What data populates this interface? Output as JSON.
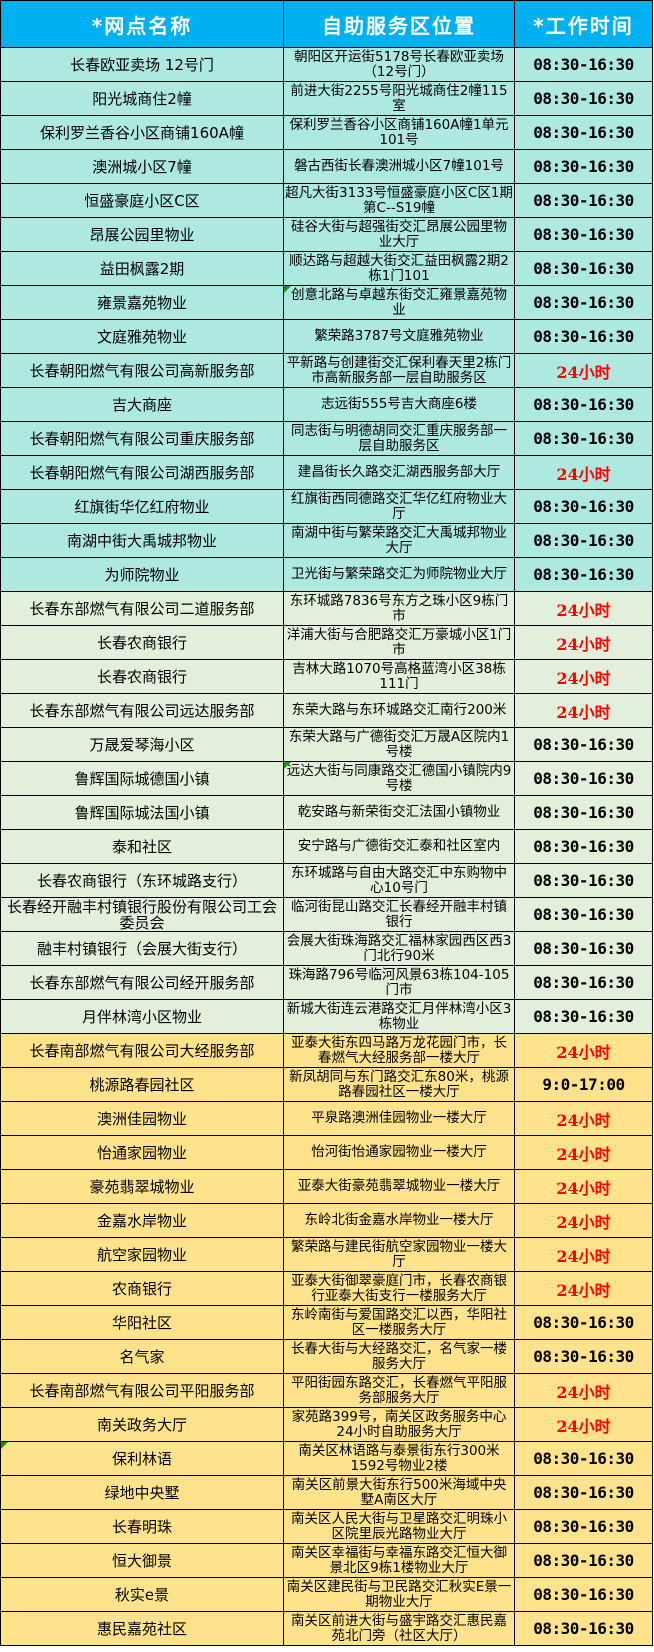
{
  "header": {
    "columns": [
      "*网点名称",
      "自助服务区位置",
      "*工作时间"
    ]
  },
  "colors": {
    "header_bg": "#00B0F0",
    "header_text": "#FFFFFF",
    "band_cyan": "#ADE8E1",
    "band_green": "#E2EFDA",
    "band_yellow": "#FFE38C",
    "hours_normal": "#000000",
    "hours_24h": "#FF0000",
    "border": "#000000",
    "note_marker": "#1E8E1E"
  },
  "rows": [
    {
      "name": "长春欧亚卖场 12号门",
      "location": "朝阳区开运街5178号长春欧亚卖场（12号门）",
      "hours": "08:30-16:30",
      "hours_highlight": false,
      "band": "cyan",
      "note": "none"
    },
    {
      "name": "阳光城商住2幢",
      "location": "前进大街2255号阳光城商住2幢115室",
      "hours": "08:30-16:30",
      "hours_highlight": false,
      "band": "cyan",
      "note": "none"
    },
    {
      "name": "保利罗兰香谷小区商铺160A幢",
      "location": "保利罗兰香谷小区商铺160A幢1单元101号",
      "hours": "08:30-16:30",
      "hours_highlight": false,
      "band": "cyan",
      "note": "none"
    },
    {
      "name": "澳洲城小区7幢",
      "location": "磐古西街长春澳洲城小区7幢101号",
      "hours": "08:30-16:30",
      "hours_highlight": false,
      "band": "cyan",
      "note": "none"
    },
    {
      "name": "恒盛豪庭小区C区",
      "location": "超凡大街3133号恒盛豪庭小区C区1期第C--S19幢",
      "hours": "08:30-16:30",
      "hours_highlight": false,
      "band": "cyan",
      "note": "none"
    },
    {
      "name": "昂展公园里物业",
      "location": "硅谷大街与超强街交汇昂展公园里物业大厅",
      "hours": "08:30-16:30",
      "hours_highlight": false,
      "band": "cyan",
      "note": "none"
    },
    {
      "name": "益田枫露2期",
      "location": "顺达路与超越大街交汇益田枫露2期2栋1门101",
      "hours": "08:30-16:30",
      "hours_highlight": false,
      "band": "cyan",
      "note": "none"
    },
    {
      "name": "雍景嘉苑物业",
      "location": "创意北路与卓越东街交汇雍景嘉苑物业",
      "hours": "08:30-16:30",
      "hours_highlight": false,
      "band": "cyan",
      "note": "location"
    },
    {
      "name": "文庭雅苑物业",
      "location": "繁荣路3787号文庭雅苑物业",
      "hours": "08:30-16:30",
      "hours_highlight": false,
      "band": "cyan",
      "note": "none"
    },
    {
      "name": "长春朝阳燃气有限公司高新服务部",
      "location": "平新路与创建街交汇保利春天里2栋门市高新服务部一层自助服务区",
      "hours": "24小时",
      "hours_highlight": true,
      "band": "cyan",
      "note": "none"
    },
    {
      "name": "吉大商座",
      "location": "志远街555号吉大商座6楼",
      "hours": "08:30-16:30",
      "hours_highlight": false,
      "band": "cyan",
      "note": "none"
    },
    {
      "name": "长春朝阳燃气有限公司重庆服务部",
      "location": "同志街与明德胡同交汇重庆服务部一层自助服务区",
      "hours": "08:30-16:30",
      "hours_highlight": false,
      "band": "cyan",
      "note": "none"
    },
    {
      "name": "长春朝阳燃气有限公司湖西服务部",
      "location": "建昌街长久路交汇湖西服务部大厅",
      "hours": "24小时",
      "hours_highlight": true,
      "band": "cyan",
      "note": "none"
    },
    {
      "name": "红旗街华亿红府物业",
      "location": "红旗街西同德路交汇华亿红府物业大厅",
      "hours": "08:30-16:30",
      "hours_highlight": false,
      "band": "cyan",
      "note": "none"
    },
    {
      "name": "南湖中街大禹城邦物业",
      "location": "南湖中街与繁荣路交汇大禹城邦物业大厅",
      "hours": "08:30-16:30",
      "hours_highlight": false,
      "band": "cyan",
      "note": "none"
    },
    {
      "name": "为师院物业",
      "location": "卫光街与繁荣路交汇为师院物业大厅",
      "hours": "08:30-16:30",
      "hours_highlight": false,
      "band": "cyan",
      "note": "none"
    },
    {
      "name": "长春东部燃气有限公司二道服务部",
      "location": "东环城路7836号东方之珠小区9栋门市",
      "hours": "24小时",
      "hours_highlight": true,
      "band": "green",
      "note": "none"
    },
    {
      "name": "长春农商银行",
      "location": "洋浦大街与合肥路交汇万豪城小区1门市",
      "hours": "24小时",
      "hours_highlight": true,
      "band": "green",
      "note": "none"
    },
    {
      "name": "长春农商银行",
      "location": "吉林大路1070号高格蓝湾小区38栋111门",
      "hours": "24小时",
      "hours_highlight": true,
      "band": "green",
      "note": "none"
    },
    {
      "name": "长春东部燃气有限公司远达服务部",
      "location": "东荣大路与东环城路交汇南行200米",
      "hours": "24小时",
      "hours_highlight": true,
      "band": "green",
      "note": "none"
    },
    {
      "name": "万晟爱琴海小区",
      "location": "东荣大路与广德街交汇万晟A区院内1号楼",
      "hours": "08:30-16:30",
      "hours_highlight": false,
      "band": "green",
      "note": "none"
    },
    {
      "name": "鲁辉国际城德国小镇",
      "location": "远达大街与同康路交汇德国小镇院内9号楼",
      "hours": "08:30-16:30",
      "hours_highlight": false,
      "band": "green",
      "note": "location"
    },
    {
      "name": "鲁辉国际城法国小镇",
      "location": "乾安路与新荣街交汇法国小镇物业",
      "hours": "08:30-16:30",
      "hours_highlight": false,
      "band": "green",
      "note": "none"
    },
    {
      "name": "泰和社区",
      "location": "安宁路与广德街交汇泰和社区室内",
      "hours": "08:30-16:30",
      "hours_highlight": false,
      "band": "green",
      "note": "none"
    },
    {
      "name": "长春农商银行（东环城路支行）",
      "location": "东环城路与自由大路交汇中东购物中心10号门",
      "hours": "08:30-16:30",
      "hours_highlight": false,
      "band": "green",
      "note": "none"
    },
    {
      "name": "长春经开融丰村镇银行股份有限公司工会委员会",
      "location": "临河街昆山路交汇长春经开融丰村镇银行",
      "hours": "08:30-16:30",
      "hours_highlight": false,
      "band": "green",
      "note": "none"
    },
    {
      "name": "融丰村镇银行（会展大街支行）",
      "location": "会展大街珠海路交汇福林家园西区西3门北行90米",
      "hours": "08:30-16:30",
      "hours_highlight": false,
      "band": "green",
      "note": "none"
    },
    {
      "name": "长春东部燃气有限公司经开服务部",
      "location": "珠海路796号临河风景63栋104-105门市",
      "hours": "08:30-16:30",
      "hours_highlight": false,
      "band": "green",
      "note": "none"
    },
    {
      "name": "月伴林湾小区物业",
      "location": "新城大街连云港路交汇月伴林湾小区3栋物业",
      "hours": "08:30-16:30",
      "hours_highlight": false,
      "band": "green",
      "note": "none"
    },
    {
      "name": "长春南部燃气有限公司大经服务部",
      "location": "亚泰大街东四马路万龙花园门市，长春燃气大经服务部一楼大厅",
      "hours": "24小时",
      "hours_highlight": true,
      "band": "yellow",
      "note": "none"
    },
    {
      "name": "桃源路春园社区",
      "location": "新凤胡同与东门路交汇东80米，桃源路春园社区一楼大厅",
      "hours": "9:0-17:00",
      "hours_highlight": false,
      "band": "yellow",
      "note": "none"
    },
    {
      "name": "澳洲佳园物业",
      "location": "平泉路澳洲佳园物业一楼大厅",
      "hours": "24小时",
      "hours_highlight": true,
      "band": "yellow",
      "note": "none"
    },
    {
      "name": "怡通家园物业",
      "location": "怡河街怡通家园物业一楼大厅",
      "hours": "24小时",
      "hours_highlight": true,
      "band": "yellow",
      "note": "none"
    },
    {
      "name": "豪苑翡翠城物业",
      "location": "亚泰大街豪苑翡翠城物业一楼大厅",
      "hours": "24小时",
      "hours_highlight": true,
      "band": "yellow",
      "note": "none"
    },
    {
      "name": "金嘉水岸物业",
      "location": "东岭北街金嘉水岸物业一楼大厅",
      "hours": "24小时",
      "hours_highlight": true,
      "band": "yellow",
      "note": "none"
    },
    {
      "name": "航空家园物业",
      "location": "繁荣路与建民街航空家园物业一楼大厅",
      "hours": "24小时",
      "hours_highlight": true,
      "band": "yellow",
      "note": "none"
    },
    {
      "name": "农商银行",
      "location": "亚泰大街御翠豪庭门市，长春农商银行亚泰大街支行一楼服务大厅",
      "hours": "24小时",
      "hours_highlight": true,
      "band": "yellow",
      "note": "none"
    },
    {
      "name": "华阳社区",
      "location": "东岭南街与爱国路交汇以西，华阳社区一楼服务大厅",
      "hours": "08:30-16:30",
      "hours_highlight": false,
      "band": "yellow",
      "note": "none"
    },
    {
      "name": "名气家",
      "location": "长春大街与大经路交汇，名气家一楼服务大厅",
      "hours": "08:30-16:30",
      "hours_highlight": false,
      "band": "yellow",
      "note": "none"
    },
    {
      "name": "长春南部燃气有限公司平阳服务部",
      "location": "平阳街园东路交汇，长春燃气平阳服务部服务大厅",
      "hours": "24小时",
      "hours_highlight": true,
      "band": "yellow",
      "note": "none"
    },
    {
      "name": "南关政务大厅",
      "location": "家苑路399号，南关区政务服务中心24小时自助服务大厅",
      "hours": "24小时",
      "hours_highlight": true,
      "band": "yellow",
      "note": "none"
    },
    {
      "name": "保利林语",
      "location": "南关区林语路与泰景街东行300米1592号物业2楼",
      "hours": "08:30-16:30",
      "hours_highlight": false,
      "band": "yellow",
      "note": "name"
    },
    {
      "name": "绿地中央墅",
      "location": "南关区前景大街东行500米海域中央墅A南区大厅",
      "hours": "08:30-16:30",
      "hours_highlight": false,
      "band": "yellow",
      "note": "none"
    },
    {
      "name": "长春明珠",
      "location": "南关区人民大街与卫星路交汇明珠小区院里辰光路物业大厅",
      "hours": "08:30-16:30",
      "hours_highlight": false,
      "band": "yellow",
      "note": "none"
    },
    {
      "name": "恒大御景",
      "location": "南关区幸福街与幸福东路交汇恒大御景北区9栋1楼物业大厅",
      "hours": "08:30-16:30",
      "hours_highlight": false,
      "band": "yellow",
      "note": "none"
    },
    {
      "name": "秋实e景",
      "location": "南关区建民街与卫民路交汇秋实E景一期物业大厅",
      "hours": "08:30-16:30",
      "hours_highlight": false,
      "band": "yellow",
      "note": "none"
    },
    {
      "name": "惠民嘉苑社区",
      "location": "南关区前进大街与盛宇路交汇惠民嘉苑北门旁（社区大厅）",
      "hours": "08:30-16:30",
      "hours_highlight": false,
      "band": "yellow",
      "note": "none"
    }
  ]
}
